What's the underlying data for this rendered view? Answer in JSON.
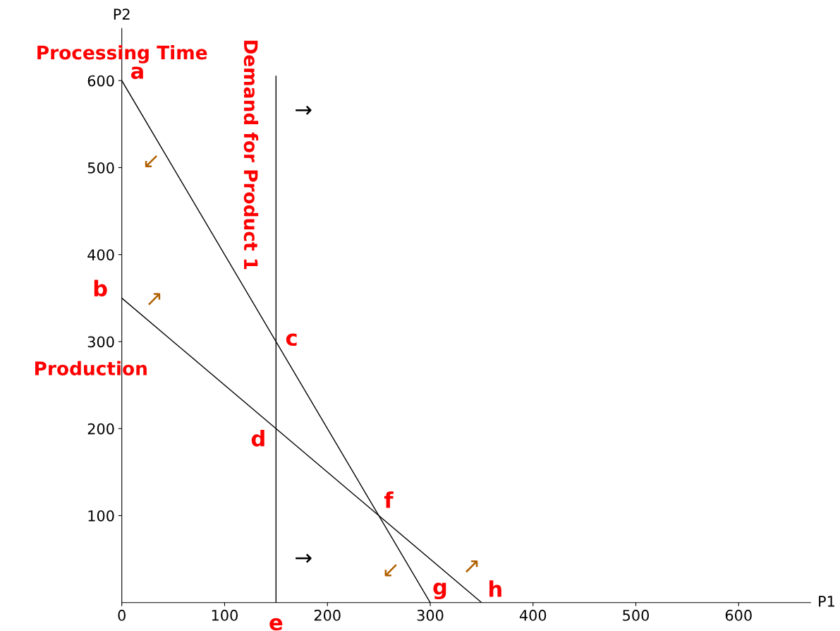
{
  "chart_data": {
    "type": "line",
    "xlabel": "P1",
    "ylabel": "P2",
    "xlim": [
      0,
      670
    ],
    "ylim": [
      0,
      660
    ],
    "xticks": [
      0,
      100,
      200,
      300,
      400,
      500,
      600
    ],
    "yticks": [
      100,
      200,
      300,
      400,
      500,
      600
    ],
    "grid": false,
    "legend": false,
    "marker": "none",
    "line_style": "solid",
    "series": [
      {
        "x": [
          0,
          300
        ],
        "values": [
          600,
          0
        ],
        "color": "#000000"
      },
      {
        "x": [
          0,
          350
        ],
        "values": [
          350,
          0
        ],
        "color": "#000000"
      },
      {
        "x": [
          150,
          150
        ],
        "values": [
          0,
          605
        ],
        "color": "#000000"
      }
    ],
    "annotations": [
      "Processing Time",
      "Production",
      "Demand for Product 1",
      {
        "text": "a",
        "x": 0,
        "y": 600
      },
      {
        "text": "b",
        "x": 0,
        "y": 350
      },
      {
        "text": "c",
        "x": 150,
        "y": 300
      },
      {
        "text": "d",
        "x": 150,
        "y": 200
      },
      {
        "text": "e",
        "x": 150,
        "y": 0
      },
      {
        "text": "f",
        "x": 250,
        "y": 100
      },
      {
        "text": "g",
        "x": 300,
        "y": 0
      },
      {
        "text": "h",
        "x": 350,
        "y": 0
      },
      {
        "text": "↙",
        "x": 40,
        "y": 520
      },
      {
        "text": "↗",
        "x": 20,
        "y": 330
      },
      {
        "text": "→",
        "x": 150,
        "y": 565
      },
      {
        "text": "→",
        "x": 150,
        "y": 50
      },
      {
        "text": "↙",
        "x": 275,
        "y": 50
      },
      {
        "text": "↗",
        "x": 325,
        "y": 25
      }
    ]
  }
}
